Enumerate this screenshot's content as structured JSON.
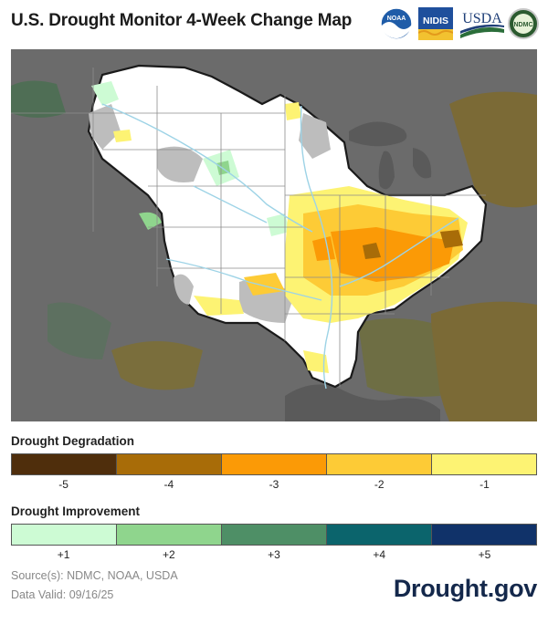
{
  "title": "U.S. Drought Monitor 4-Week Change Map",
  "logos": {
    "noaa": "NOAA",
    "nidis": "NIDIS",
    "usda": "USDA",
    "ndmc": "NDMC"
  },
  "colors": {
    "background_region": "#6e6e6e",
    "outside_basin": "#4d4d4d",
    "no_change": "#ffffff",
    "no_data_gray": "#bdbdbd",
    "state_lines": "#8c8c8c",
    "rivers": "#9dd3e6"
  },
  "legend": {
    "degradation": {
      "title": "Drought Degradation",
      "items": [
        {
          "label": "-5",
          "color": "#4f2e0c"
        },
        {
          "label": "-4",
          "color": "#a86c08"
        },
        {
          "label": "-3",
          "color": "#fb9a06"
        },
        {
          "label": "-2",
          "color": "#fdcb36"
        },
        {
          "label": "-1",
          "color": "#fdf373"
        }
      ]
    },
    "improvement": {
      "title": "Drought Improvement",
      "items": [
        {
          "label": "+1",
          "color": "#cdfbd4"
        },
        {
          "label": "+2",
          "color": "#8fd58d"
        },
        {
          "label": "+3",
          "color": "#4e8f66"
        },
        {
          "label": "+4",
          "color": "#0b646c"
        },
        {
          "label": "+5",
          "color": "#103269"
        }
      ]
    }
  },
  "footer": {
    "source": "Source(s): NDMC, NOAA, USDA",
    "valid": "Data Valid: 09/16/25",
    "brand": "Drought.gov"
  }
}
